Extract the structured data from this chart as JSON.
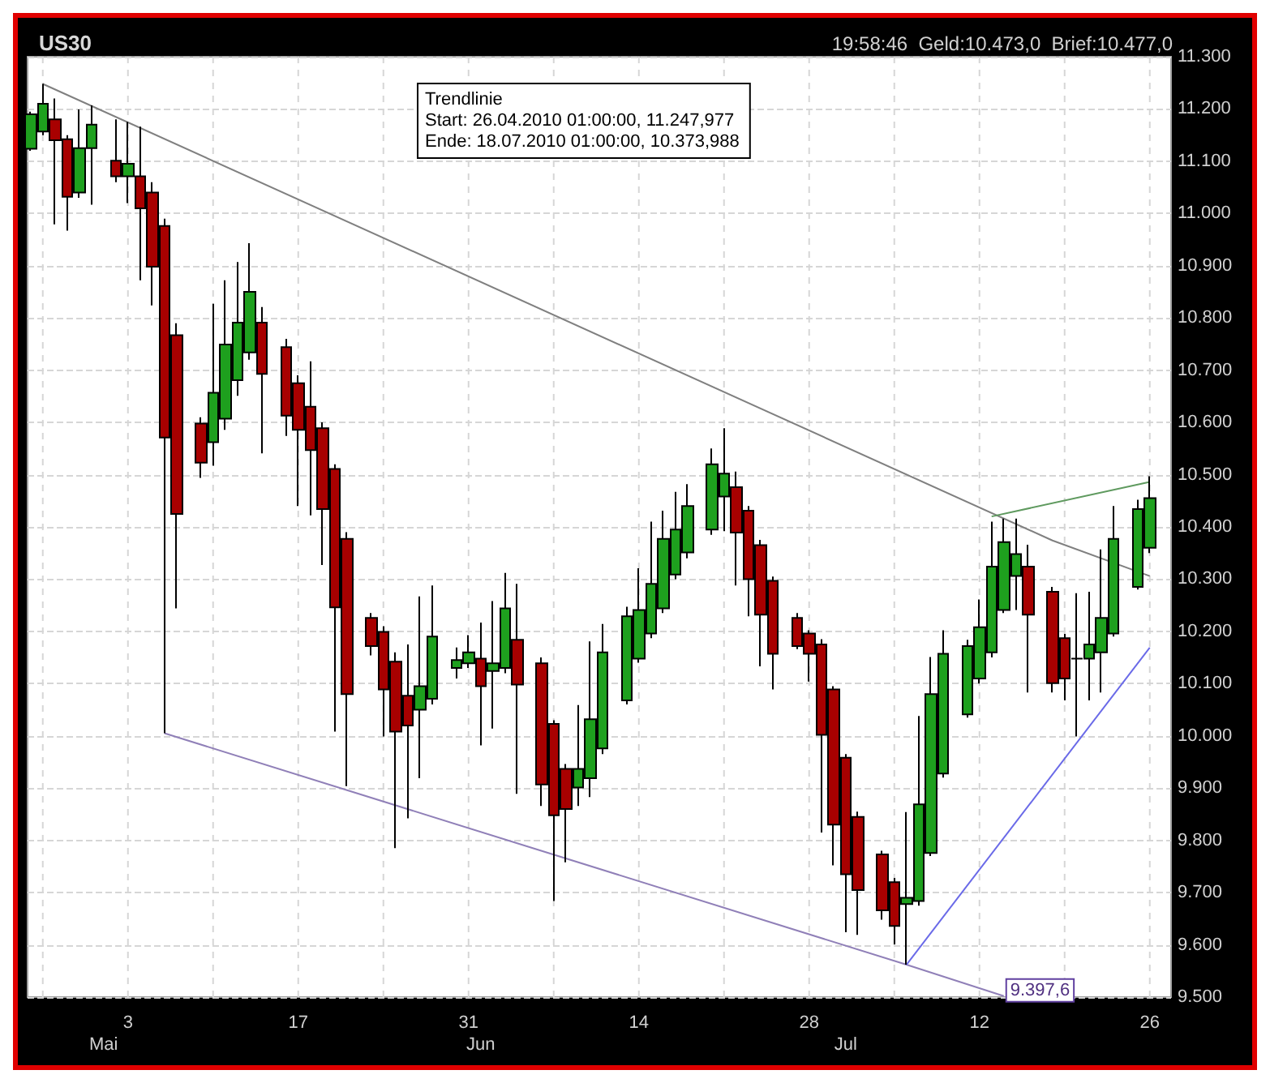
{
  "chart_data": {
    "type": "candlestick",
    "title": "US30",
    "subtitle": "19:58:46  Geld:10.473,0  Brief:10.477,0",
    "x": [
      "2010-04-25",
      "2010-04-26",
      "2010-04-27",
      "2010-04-28",
      "2010-04-29",
      "2010-04-30",
      "2010-05-02",
      "2010-05-03",
      "2010-05-04",
      "2010-05-05",
      "2010-05-06",
      "2010-05-07",
      "2010-05-09",
      "2010-05-10",
      "2010-05-11",
      "2010-05-12",
      "2010-05-13",
      "2010-05-14",
      "2010-05-16",
      "2010-05-17",
      "2010-05-18",
      "2010-05-19",
      "2010-05-20",
      "2010-05-21",
      "2010-05-23",
      "2010-05-24",
      "2010-05-25",
      "2010-05-26",
      "2010-05-27",
      "2010-05-28",
      "2010-05-30",
      "2010-05-31",
      "2010-06-01",
      "2010-06-02",
      "2010-06-03",
      "2010-06-04",
      "2010-06-06",
      "2010-06-07",
      "2010-06-08",
      "2010-06-09",
      "2010-06-10",
      "2010-06-11",
      "2010-06-13",
      "2010-06-14",
      "2010-06-15",
      "2010-06-16",
      "2010-06-17",
      "2010-06-18",
      "2010-06-20",
      "2010-06-21",
      "2010-06-22",
      "2010-06-23",
      "2010-06-24",
      "2010-06-25",
      "2010-06-27",
      "2010-06-28",
      "2010-06-29",
      "2010-06-30",
      "2010-07-01",
      "2010-07-02",
      "2010-07-04",
      "2010-07-05",
      "2010-07-06",
      "2010-07-07",
      "2010-07-08",
      "2010-07-09",
      "2010-07-11",
      "2010-07-12",
      "2010-07-13",
      "2010-07-14",
      "2010-07-15",
      "2010-07-16",
      "2010-07-18",
      "2010-07-19",
      "2010-07-20",
      "2010-07-21",
      "2010-07-22",
      "2010-07-23",
      "2010-07-25",
      "2010-07-26"
    ],
    "series": [
      {
        "ohlc": [
          [
            11124,
            11195,
            11120,
            11190
          ],
          [
            11157,
            11248,
            11150,
            11210
          ],
          [
            11180,
            11220,
            10979,
            11140
          ],
          [
            11142,
            11150,
            10967,
            11032
          ],
          [
            11040,
            11199,
            11030,
            11125
          ],
          [
            11125,
            11207,
            11017,
            11170
          ],
          [
            11101,
            11180,
            11060,
            11071
          ],
          [
            11071,
            11175,
            11020,
            11095
          ],
          [
            11071,
            11166,
            10872,
            11010
          ],
          [
            11040,
            11060,
            10824,
            10898
          ],
          [
            10976,
            10990,
            10005,
            10571
          ],
          [
            10767,
            10790,
            10244,
            10425
          ],
          [
            10598,
            10610,
            10494,
            10523
          ],
          [
            10562,
            10827,
            10517,
            10657
          ],
          [
            10607,
            10872,
            10586,
            10749
          ],
          [
            10681,
            10907,
            10651,
            10791
          ],
          [
            10734,
            10943,
            10720,
            10850
          ],
          [
            10791,
            10821,
            10541,
            10693
          ],
          [
            10744,
            10760,
            10574,
            10613
          ],
          [
            10675,
            10690,
            10440,
            10586
          ],
          [
            10630,
            10717,
            10422,
            10547
          ],
          [
            10589,
            10600,
            10327,
            10434
          ],
          [
            10511,
            10520,
            10008,
            10246
          ],
          [
            10377,
            10390,
            9904,
            10080
          ],
          [
            10226,
            10235,
            10154,
            10172
          ],
          [
            10199,
            10210,
            9999,
            10089
          ],
          [
            10142,
            10160,
            9785,
            10008
          ],
          [
            10077,
            10175,
            9842,
            10020
          ],
          [
            10050,
            10267,
            9919,
            10095
          ],
          [
            10071,
            10288,
            10060,
            10190
          ],
          [
            10130,
            10169,
            10110,
            10145
          ],
          [
            10139,
            10193,
            10130,
            10160
          ],
          [
            10148,
            10217,
            9982,
            10095
          ],
          [
            10124,
            10258,
            10014,
            10139
          ],
          [
            10130,
            10312,
            10120,
            10244
          ],
          [
            10184,
            10291,
            9889,
            10098
          ],
          [
            10139,
            10150,
            9866,
            9907
          ],
          [
            10023,
            10030,
            9684,
            9848
          ],
          [
            9937,
            9946,
            9758,
            9860
          ],
          [
            9901,
            10059,
            9866,
            9937
          ],
          [
            9919,
            10181,
            9883,
            10032
          ],
          [
            9976,
            10214,
            9965,
            10160
          ],
          [
            10068,
            10247,
            10060,
            10229
          ],
          [
            10148,
            10321,
            10140,
            10241
          ],
          [
            10196,
            10410,
            10187,
            10291
          ],
          [
            10244,
            10431,
            10235,
            10377
          ],
          [
            10309,
            10467,
            10300,
            10395
          ],
          [
            10351,
            10482,
            10340,
            10440
          ],
          [
            10395,
            10550,
            10385,
            10520
          ],
          [
            10458,
            10589,
            10392,
            10502
          ],
          [
            10476,
            10506,
            10288,
            10389
          ],
          [
            10431,
            10440,
            10229,
            10300
          ],
          [
            10365,
            10375,
            10133,
            10232
          ],
          [
            10297,
            10305,
            10089,
            10157
          ],
          [
            10226,
            10235,
            10166,
            10172
          ],
          [
            10196,
            10202,
            10104,
            10157
          ],
          [
            10175,
            10185,
            9815,
            10002
          ],
          [
            10089,
            10095,
            9752,
            9830
          ],
          [
            9958,
            9965,
            9624,
            9735
          ],
          [
            9845,
            9855,
            9619,
            9705
          ],
          [
            9773,
            9780,
            9648,
            9666
          ],
          [
            9720,
            9728,
            9601,
            9636
          ],
          [
            9678,
            9854,
            9562,
            9690
          ],
          [
            9684,
            10038,
            9675,
            9869
          ],
          [
            9776,
            10151,
            9770,
            10080
          ],
          [
            9928,
            10202,
            9920,
            10157
          ],
          [
            10041,
            10184,
            10035,
            10172
          ],
          [
            10110,
            10261,
            10100,
            10208
          ],
          [
            10160,
            10410,
            10150,
            10324
          ],
          [
            10241,
            10416,
            10235,
            10371
          ],
          [
            10306,
            10416,
            10241,
            10348
          ],
          [
            10324,
            10366,
            10083,
            10232
          ],
          [
            10276,
            10285,
            10083,
            10101
          ],
          [
            10187,
            10195,
            10068,
            10110
          ],
          [
            10148,
            10273,
            9999,
            10148
          ],
          [
            10148,
            10276,
            10068,
            10175
          ],
          [
            10160,
            10357,
            10083,
            10226
          ],
          [
            10196,
            10440,
            10190,
            10377
          ],
          [
            10285,
            10452,
            10280,
            10434
          ],
          [
            10360,
            10497,
            10350,
            10455
          ]
        ],
        "colors": [
          "#1ea01e",
          "#1ea01e",
          "#a80000",
          "#a80000",
          "#1ea01e",
          "#1ea01e",
          "#a80000",
          "#1ea01e",
          "#a80000",
          "#a80000",
          "#a80000",
          "#a80000",
          "#a80000",
          "#1ea01e",
          "#1ea01e",
          "#1ea01e",
          "#1ea01e",
          "#a80000",
          "#a80000",
          "#a80000",
          "#a80000",
          "#a80000",
          "#a80000",
          "#a80000",
          "#a80000",
          "#a80000",
          "#a80000",
          "#a80000",
          "#1ea01e",
          "#1ea01e",
          "#1ea01e",
          "#1ea01e",
          "#a80000",
          "#1ea01e",
          "#1ea01e",
          "#a80000",
          "#a80000",
          "#a80000",
          "#a80000",
          "#1ea01e",
          "#1ea01e",
          "#1ea01e",
          "#1ea01e",
          "#1ea01e",
          "#1ea01e",
          "#1ea01e",
          "#1ea01e",
          "#1ea01e",
          "#1ea01e",
          "#1ea01e",
          "#a80000",
          "#a80000",
          "#a80000",
          "#a80000",
          "#a80000",
          "#a80000",
          "#a80000",
          "#a80000",
          "#a80000",
          "#a80000",
          "#a80000",
          "#a80000",
          "#1ea01e",
          "#1ea01e",
          "#1ea01e",
          "#1ea01e",
          "#1ea01e",
          "#1ea01e",
          "#1ea01e",
          "#1ea01e",
          "#1ea01e",
          "#a80000",
          "#a80000",
          "#a80000",
          "#000000",
          "#1ea01e",
          "#1ea01e",
          "#1ea01e",
          "#1ea01e",
          "#1ea01e"
        ]
      },
      {
        "type": "line",
        "x": [
          "2010-04-26",
          "2010-07-18",
          "2010-07-26"
        ],
        "values": [
          11248,
          10374,
          10306
        ],
        "color": "#808080"
      },
      {
        "type": "line",
        "x": [
          "2010-07-13",
          "2010-07-26"
        ],
        "values": [
          10420,
          10486
        ],
        "color": "#5f9a5f"
      },
      {
        "type": "line",
        "x": [
          "2010-05-06",
          "2010-07-06",
          "2010-07-14"
        ],
        "values": [
          10005,
          9562,
          9502
        ],
        "color": "#9080b8"
      },
      {
        "type": "line",
        "x": [
          "2010-07-06",
          "2010-07-26"
        ],
        "values": [
          9562,
          10169
        ],
        "color": "#6a6ae8"
      }
    ],
    "ylim": [
      9500,
      11300
    ],
    "yticks": [
      {
        "value": 9500,
        "label": "9.500"
      },
      {
        "value": 9600,
        "label": "9.600"
      },
      {
        "value": 9700,
        "label": "9.700"
      },
      {
        "value": 9800,
        "label": "9.800"
      },
      {
        "value": 9900,
        "label": "9.900"
      },
      {
        "value": 10000,
        "label": "10.000"
      },
      {
        "value": 10100,
        "label": "10.100"
      },
      {
        "value": 10200,
        "label": "10.200"
      },
      {
        "value": 10300,
        "label": "10.300"
      },
      {
        "value": 10400,
        "label": "10.400"
      },
      {
        "value": 10500,
        "label": "10.500"
      },
      {
        "value": 10600,
        "label": "10.600"
      },
      {
        "value": 10700,
        "label": "10.700"
      },
      {
        "value": 10800,
        "label": "10.800"
      },
      {
        "value": 10900,
        "label": "10.900"
      },
      {
        "value": 11000,
        "label": "11.000"
      },
      {
        "value": 11100,
        "label": "11.100"
      },
      {
        "value": 11200,
        "label": "11.200"
      },
      {
        "value": 11300,
        "label": "11.300"
      }
    ],
    "xlim": [
      "2010-04-24T18:00",
      "2010-07-27T18:00"
    ],
    "xticks": [
      {
        "value": "2010-04-26",
        "label": null
      },
      {
        "value": "2010-05-03",
        "label": "3"
      },
      {
        "value": "2010-05-10",
        "label": null
      },
      {
        "value": "2010-05-17",
        "label": "17"
      },
      {
        "value": "2010-05-24",
        "label": null
      },
      {
        "value": "2010-05-31",
        "label": "31"
      },
      {
        "value": "2010-06-07",
        "label": null
      },
      {
        "value": "2010-06-14",
        "label": "14"
      },
      {
        "value": "2010-06-21",
        "label": null
      },
      {
        "value": "2010-06-28",
        "label": "28"
      },
      {
        "value": "2010-07-05",
        "label": null
      },
      {
        "value": "2010-07-12",
        "label": "12"
      },
      {
        "value": "2010-07-19",
        "label": null
      },
      {
        "value": "2010-07-26",
        "label": "26"
      }
    ],
    "x2lim": [
      "2010-04-24T18:00",
      "2010-07-27T18:00"
    ],
    "x2ticks": [
      {
        "value": "2010-05-01",
        "label": "Mai"
      },
      {
        "value": "2010-06-01",
        "label": "Jun"
      },
      {
        "value": "2010-07-01",
        "label": "Jul"
      }
    ],
    "grid": true,
    "marker": "none",
    "line_style": "solid",
    "annotations": [
      "Trendlinie\nStart: 26.04.2010 01:00:00, 11.247,977\nEnde: 18.07.2010 01:00:00, 10.373,988",
      {
        "text": "9.397,6",
        "x": "2010-07-14",
        "y": 9502
      }
    ]
  }
}
